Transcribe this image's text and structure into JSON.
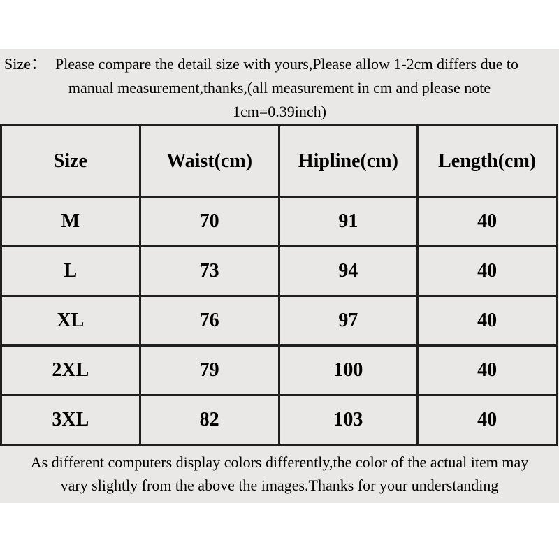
{
  "theme": {
    "panel_bg": "#e9e8e6",
    "border_color": "#1f1f1f",
    "text_color": "#000000",
    "page_bg": "#ffffff"
  },
  "size_note": {
    "label": "Size：",
    "line1": "Please compare the detail size with yours,Please allow 1-2cm differs due to",
    "line2": "manual measurement,thanks,(all measurement in cm and please note",
    "line3": "1cm=0.39inch)"
  },
  "size_table": {
    "columns": [
      "Size",
      "Waist(cm)",
      "Hipline(cm)",
      "Length(cm)"
    ],
    "rows": [
      [
        "M",
        "70",
        "91",
        "40"
      ],
      [
        "L",
        "73",
        "94",
        "40"
      ],
      [
        "XL",
        "76",
        "97",
        "40"
      ],
      [
        "2XL",
        "79",
        "100",
        "40"
      ],
      [
        "3XL",
        "82",
        "103",
        "40"
      ]
    ]
  },
  "footer_note": {
    "line1": "As different computers display colors differently,the color of the actual item may",
    "line2": "vary slightly from the above the images.Thanks for your understanding"
  }
}
